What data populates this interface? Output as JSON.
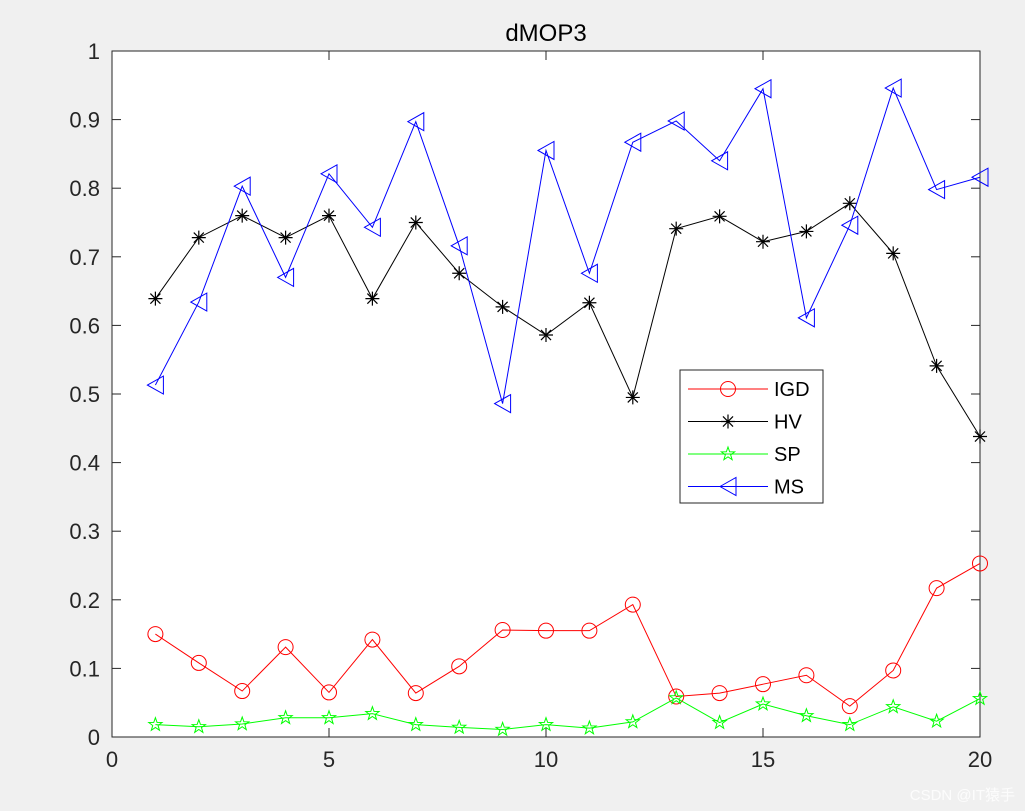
{
  "chart_data": {
    "type": "line",
    "title": "dMOP3",
    "xlabel": "",
    "ylabel": "",
    "xlim": [
      0,
      20
    ],
    "ylim": [
      0,
      1
    ],
    "xticks": [
      0,
      5,
      10,
      15,
      20
    ],
    "yticks": [
      0,
      0.1,
      0.2,
      0.3,
      0.4,
      0.5,
      0.6,
      0.7,
      0.8,
      0.9,
      1
    ],
    "ytick_labels": [
      "0",
      "0.1",
      "0.2",
      "0.3",
      "0.4",
      "0.5",
      "0.6",
      "0.7",
      "0.8",
      "0.9",
      "1"
    ],
    "xtick_labels": [
      "0",
      "5",
      "10",
      "15",
      "20"
    ],
    "grid": false,
    "legend_position": "center-right",
    "x": [
      1,
      2,
      3,
      4,
      5,
      6,
      7,
      8,
      9,
      10,
      11,
      12,
      13,
      14,
      15,
      16,
      17,
      18,
      19,
      20
    ],
    "series": [
      {
        "name": "IGD",
        "color": "#ff0000",
        "marker": "circle",
        "values": [
          0.15,
          0.108,
          0.067,
          0.131,
          0.065,
          0.142,
          0.064,
          0.103,
          0.156,
          0.155,
          0.155,
          0.193,
          0.059,
          0.064,
          0.077,
          0.09,
          0.045,
          0.097,
          0.217,
          0.253
        ]
      },
      {
        "name": "HV",
        "color": "#000000",
        "marker": "asterisk",
        "values": [
          0.639,
          0.728,
          0.76,
          0.728,
          0.76,
          0.639,
          0.75,
          0.676,
          0.627,
          0.586,
          0.633,
          0.495,
          0.741,
          0.759,
          0.722,
          0.737,
          0.778,
          0.705,
          0.541,
          0.438
        ]
      },
      {
        "name": "SP",
        "color": "#00ff00",
        "marker": "star",
        "values": [
          0.018,
          0.015,
          0.019,
          0.028,
          0.028,
          0.034,
          0.018,
          0.014,
          0.011,
          0.018,
          0.013,
          0.022,
          0.057,
          0.021,
          0.048,
          0.031,
          0.018,
          0.044,
          0.023,
          0.056
        ]
      },
      {
        "name": "MS",
        "color": "#0000ff",
        "marker": "triangle-left",
        "values": [
          0.513,
          0.634,
          0.803,
          0.67,
          0.821,
          0.743,
          0.897,
          0.716,
          0.486,
          0.855,
          0.676,
          0.867,
          0.898,
          0.84,
          0.945,
          0.611,
          0.746,
          0.946,
          0.798,
          0.816
        ]
      }
    ]
  },
  "watermark": "CSDN @IT猿手"
}
